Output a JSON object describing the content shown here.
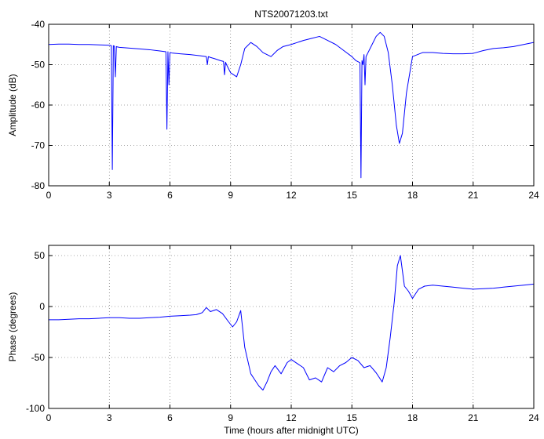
{
  "chart_data": [
    {
      "type": "line",
      "title": "NTS20071203.txt",
      "xlabel": "",
      "ylabel": "Amplitude (dB)",
      "xlim": [
        0,
        24
      ],
      "ylim": [
        -80,
        -40
      ],
      "xticks": [
        0,
        3,
        6,
        9,
        12,
        15,
        18,
        21,
        24
      ],
      "yticks": [
        -80,
        -70,
        -60,
        -50,
        -40
      ],
      "grid": true,
      "color": "#0000ff",
      "series": [
        {
          "x": [
            0,
            0.5,
            1,
            1.5,
            2,
            2.5,
            3,
            3.1,
            3.15,
            3.2,
            3.25,
            3.3,
            3.35,
            3.4,
            3.5,
            4,
            4.5,
            5,
            5.5,
            5.8,
            5.85,
            5.9,
            5.95,
            6.0,
            6.1,
            6.5,
            7,
            7.5,
            7.8,
            7.85,
            7.9,
            8,
            8.2,
            8.5,
            8.65,
            8.7,
            8.75,
            8.8,
            9,
            9.3,
            9.5,
            9.7,
            10,
            10.3,
            10.6,
            11,
            11.3,
            11.6,
            12,
            12.3,
            12.6,
            13,
            13.4,
            13.8,
            14.2,
            14.6,
            15,
            15.2,
            15.4,
            15.45,
            15.5,
            15.55,
            15.6,
            15.65,
            15.7,
            15.75,
            15.8,
            16,
            16.2,
            16.4,
            16.6,
            16.8,
            17,
            17.2,
            17.35,
            17.5,
            17.7,
            18,
            18.5,
            19,
            19.5,
            20,
            20.5,
            21,
            21.5,
            22,
            22.5,
            23,
            23.5,
            24
          ],
          "y": [
            -45,
            -44.9,
            -44.9,
            -45,
            -45,
            -45.1,
            -45.2,
            -45.3,
            -76,
            -45.3,
            -45.4,
            -53,
            -45.5,
            -45.6,
            -45.7,
            -45.9,
            -46.1,
            -46.3,
            -46.6,
            -46.8,
            -66,
            -46.8,
            -55,
            -47,
            -47.1,
            -47.3,
            -47.5,
            -47.8,
            -48,
            -50,
            -48,
            -48.2,
            -48.5,
            -49,
            -49.2,
            -52.5,
            -49.4,
            -50,
            -52,
            -53,
            -50,
            -46,
            -44.5,
            -45.5,
            -47,
            -48,
            -46.5,
            -45.5,
            -45,
            -44.5,
            -44,
            -43.5,
            -43,
            -44,
            -45,
            -46.5,
            -48,
            -49,
            -49.5,
            -78,
            -49,
            -50,
            -47.5,
            -55,
            -48,
            -47.5,
            -47,
            -45,
            -43,
            -42,
            -43,
            -47,
            -55,
            -65,
            -69.5,
            -67,
            -57,
            -48,
            -47,
            -47,
            -47.2,
            -47.3,
            -47.3,
            -47.2,
            -46.5,
            -46,
            -45.8,
            -45.5,
            -45,
            -44.5
          ]
        }
      ]
    },
    {
      "type": "line",
      "title": "",
      "xlabel": "Time (hours after midnight UTC)",
      "ylabel": "Phase (degrees)",
      "xlim": [
        0,
        24
      ],
      "ylim": [
        -100,
        60
      ],
      "xticks": [
        0,
        3,
        6,
        9,
        12,
        15,
        18,
        21,
        24
      ],
      "yticks": [
        -100,
        -50,
        0,
        50
      ],
      "grid": true,
      "color": "#0000ff",
      "series": [
        {
          "x": [
            0,
            0.5,
            1,
            1.5,
            2,
            2.5,
            3,
            3.5,
            4,
            4.5,
            5,
            5.5,
            6,
            6.5,
            7,
            7.3,
            7.6,
            7.8,
            8.0,
            8.3,
            8.6,
            8.9,
            9.1,
            9.3,
            9.5,
            9.7,
            10,
            10.2,
            10.4,
            10.6,
            10.8,
            11,
            11.2,
            11.5,
            11.8,
            12,
            12.3,
            12.6,
            12.9,
            13.2,
            13.5,
            13.8,
            14.1,
            14.4,
            14.7,
            15,
            15.3,
            15.6,
            15.9,
            16.2,
            16.5,
            16.7,
            16.9,
            17.1,
            17.25,
            17.4,
            17.5,
            17.6,
            17.8,
            18,
            18.3,
            18.6,
            19,
            19.5,
            20,
            20.5,
            21,
            21.5,
            22,
            22.5,
            23,
            23.5,
            24
          ],
          "y": [
            -13,
            -13,
            -12.5,
            -12,
            -12,
            -11.5,
            -11,
            -11,
            -11.5,
            -11.5,
            -11,
            -10.5,
            -9.5,
            -9,
            -8.5,
            -8,
            -6,
            -1,
            -5,
            -3,
            -7,
            -15,
            -20,
            -15,
            -4,
            -40,
            -66,
            -72,
            -78,
            -82,
            -74,
            -64,
            -58,
            -66,
            -55,
            -52,
            -56,
            -60,
            -72,
            -70,
            -74,
            -60,
            -64,
            -58,
            -55,
            -50,
            -53,
            -60,
            -58,
            -65,
            -74,
            -60,
            -30,
            5,
            40,
            50,
            35,
            20,
            15,
            8,
            17,
            20,
            21,
            20,
            19,
            18,
            17,
            17.5,
            18,
            19,
            20,
            21,
            22
          ]
        }
      ]
    }
  ]
}
